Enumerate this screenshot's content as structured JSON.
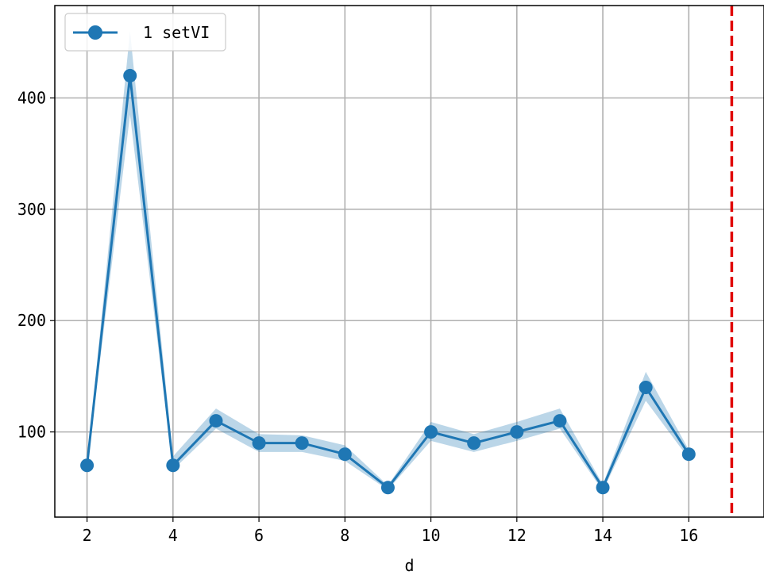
{
  "chart_data": {
    "type": "line",
    "xlabel": "d",
    "ylabel": "",
    "title": "",
    "xlim": [
      1.25,
      17.75
    ],
    "ylim": [
      23.5,
      483
    ],
    "xticks": [
      2,
      4,
      6,
      8,
      10,
      12,
      14,
      16
    ],
    "yticks": [
      100,
      200,
      300,
      400
    ],
    "grid": true,
    "legend_position": "upper-left",
    "series": [
      {
        "name": "1 setVI",
        "color": "#1f77b4",
        "marker": "circle",
        "x": [
          2,
          3,
          4,
          5,
          6,
          7,
          8,
          9,
          10,
          11,
          12,
          13,
          14,
          15,
          16
        ],
        "y": [
          70,
          420,
          70,
          110,
          90,
          90,
          80,
          50,
          100,
          90,
          100,
          110,
          50,
          140,
          80
        ],
        "upper": [
          72,
          460,
          78,
          121,
          98,
          97,
          88,
          52,
          109,
          98,
          109,
          121,
          53,
          154,
          84
        ],
        "lower": [
          68,
          385,
          66,
          103,
          82,
          82,
          74,
          48,
          92,
          82,
          92,
          103,
          47,
          128,
          76
        ]
      }
    ],
    "vline": {
      "x": 17,
      "color": "#e00000",
      "style": "dashed"
    }
  }
}
